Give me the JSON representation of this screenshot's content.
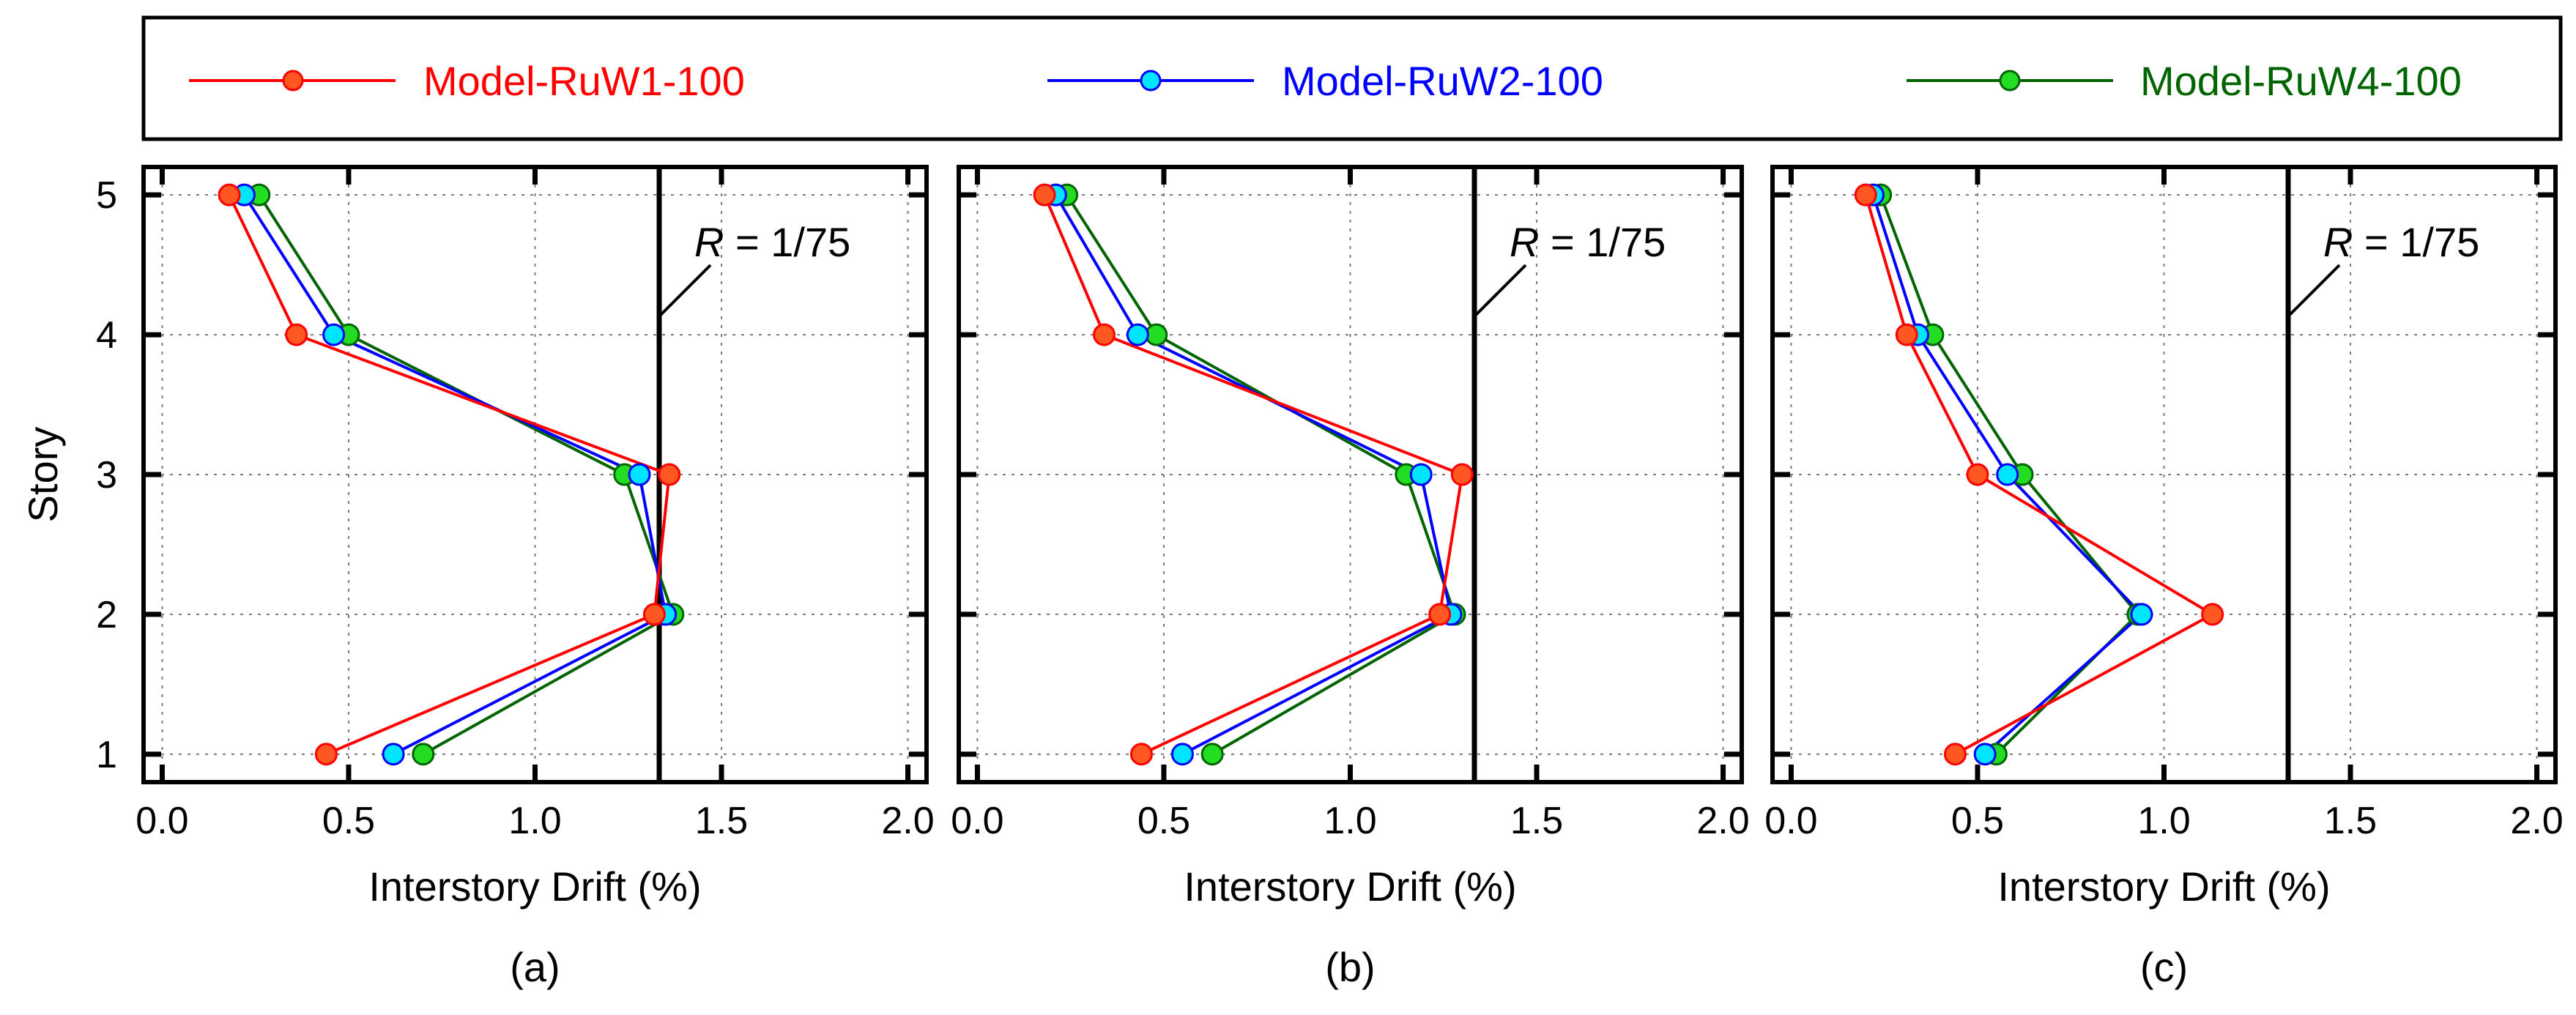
{
  "legend": [
    {
      "name": "Model-RuW1-100",
      "color": "#ff0000",
      "marker": "#ff5722"
    },
    {
      "name": "Model-RuW2-100",
      "color": "#0000ff",
      "marker": "#00e5ff"
    },
    {
      "name": "Model-RuW4-100",
      "color": "#006400",
      "marker": "#22dd22"
    }
  ],
  "chart_data": [
    {
      "type": "line",
      "panel": "(a)",
      "xlabel": "Interstory Drift  (%)",
      "ylabel": "Story",
      "xlim": [
        -0.05,
        2.05
      ],
      "ylim": [
        0.8,
        5.2
      ],
      "xticks": [
        "0.0",
        "0.5",
        "1.0",
        "1.5",
        "2.0"
      ],
      "yticks": [
        "1",
        "2",
        "3",
        "4",
        "5"
      ],
      "reference": {
        "label_italic": "R",
        "label_rest": " = 1/75",
        "x": 1.333
      },
      "stories": [
        1,
        2,
        3,
        4,
        5
      ],
      "series": [
        {
          "name": "Model-RuW1-100",
          "x": [
            0.44,
            1.32,
            1.36,
            0.36,
            0.18
          ]
        },
        {
          "name": "Model-RuW2-100",
          "x": [
            0.62,
            1.35,
            1.28,
            0.46,
            0.22
          ]
        },
        {
          "name": "Model-RuW4-100",
          "x": [
            0.7,
            1.37,
            1.24,
            0.5,
            0.26
          ]
        }
      ]
    },
    {
      "type": "line",
      "panel": "(b)",
      "xlabel": "Interstory Drift  (%)",
      "ylabel": "",
      "xlim": [
        -0.05,
        2.05
      ],
      "ylim": [
        0.8,
        5.2
      ],
      "xticks": [
        "0.0",
        "0.5",
        "1.0",
        "1.5",
        "2.0"
      ],
      "yticks": [],
      "reference": {
        "label_italic": "R",
        "label_rest": " = 1/75",
        "x": 1.333
      },
      "stories": [
        1,
        2,
        3,
        4,
        5
      ],
      "series": [
        {
          "name": "Model-RuW1-100",
          "x": [
            0.44,
            1.24,
            1.3,
            0.34,
            0.18
          ]
        },
        {
          "name": "Model-RuW2-100",
          "x": [
            0.55,
            1.27,
            1.19,
            0.43,
            0.21
          ]
        },
        {
          "name": "Model-RuW4-100",
          "x": [
            0.63,
            1.28,
            1.15,
            0.48,
            0.24
          ]
        }
      ]
    },
    {
      "type": "line",
      "panel": "(c)",
      "xlabel": "Interstory Drift  (%)",
      "ylabel": "",
      "xlim": [
        -0.05,
        2.05
      ],
      "ylim": [
        0.8,
        5.2
      ],
      "xticks": [
        "0.0",
        "0.5",
        "1.0",
        "1.5",
        "2.0"
      ],
      "yticks": [],
      "reference": {
        "label_italic": "R",
        "label_rest": " = 1/75",
        "x": 1.333
      },
      "stories": [
        1,
        2,
        3,
        4,
        5
      ],
      "series": [
        {
          "name": "Model-RuW1-100",
          "x": [
            0.44,
            1.13,
            0.5,
            0.31,
            0.2
          ]
        },
        {
          "name": "Model-RuW2-100",
          "x": [
            0.52,
            0.94,
            0.58,
            0.34,
            0.22
          ]
        },
        {
          "name": "Model-RuW4-100",
          "x": [
            0.55,
            0.93,
            0.62,
            0.38,
            0.24
          ]
        }
      ]
    }
  ]
}
